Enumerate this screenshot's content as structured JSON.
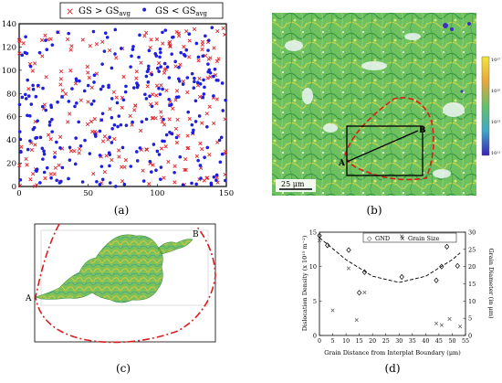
{
  "panel_a": {
    "caption": "(a)",
    "legend": [
      {
        "marker": "×",
        "label": "GS > GS",
        "sub": "avg",
        "color": "#e0242a"
      },
      {
        "marker": "•",
        "label": "GS < GS",
        "sub": "avg",
        "color": "#1f1fe0"
      }
    ],
    "chart_data": {
      "type": "scatter",
      "xlim": [
        0,
        150
      ],
      "ylim": [
        0,
        140
      ],
      "xticks": [
        "0",
        "50",
        "100",
        "150"
      ],
      "yticks": [
        "0",
        "20",
        "40",
        "60",
        "80",
        "100",
        "120",
        "140"
      ],
      "series": [
        {
          "name": "GS > GSavg",
          "color": "#e0242a",
          "marker": "x",
          "points": []
        },
        {
          "name": "GS < GSavg",
          "color": "#1f1fe0",
          "marker": "dot",
          "points": []
        }
      ],
      "grid": false
    }
  },
  "panel_b": {
    "caption": "(b)",
    "scale_bar_label": "25 μm",
    "point_a": "A",
    "point_b": "B",
    "colorbar_ticks": [
      "10¹⁷",
      "10¹⁵",
      "10¹³",
      "10¹¹"
    ]
  },
  "panel_c": {
    "caption": "(c)",
    "point_a": "A",
    "point_b": "B"
  },
  "panel_d": {
    "caption": "(d)",
    "legend": [
      {
        "marker": "◇",
        "label": "GND"
      },
      {
        "marker": "×",
        "label": "Grain Size"
      }
    ],
    "chart_data": {
      "type": "scatter",
      "xlabel": "Grain Distance from Interplat Boundary (μm)",
      "ylabel": "Dislocation Density  (x 10¹⁵ m⁻²)",
      "y2label": "Grain Diameter (in μm)",
      "xlim": [
        0,
        55
      ],
      "ylim": [
        0,
        15
      ],
      "y2lim": [
        0,
        30
      ],
      "xticks": [
        "0",
        "5",
        "10",
        "15",
        "20",
        "25",
        "30",
        "35",
        "40",
        "45",
        "50",
        "55"
      ],
      "yticks": [
        "0",
        "5",
        "10",
        "15"
      ],
      "y2ticks": [
        "0",
        "5",
        "10",
        "15",
        "20",
        "25",
        "30"
      ],
      "series": [
        {
          "name": "GND",
          "axis": "left",
          "marker": "diamond",
          "points": [
            [
              0,
              14.5
            ],
            [
              3,
              13.1
            ],
            [
              11,
              12.4
            ],
            [
              15,
              6.2
            ],
            [
              17,
              9.2
            ],
            [
              31,
              8.5
            ],
            [
              44,
              8.0
            ],
            [
              46,
              10.0
            ],
            [
              48,
              12.9
            ],
            [
              52,
              10.1
            ]
          ]
        },
        {
          "name": "Grain Size",
          "axis": "right",
          "marker": "x",
          "points": [
            [
              0,
              27.6
            ],
            [
              5,
              7.3
            ],
            [
              11,
              19.5
            ],
            [
              14,
              4.5
            ],
            [
              17,
              12.5
            ],
            [
              31,
              28.8
            ],
            [
              44,
              3.5
            ],
            [
              46,
              3.0
            ],
            [
              49,
              4.8
            ],
            [
              53,
              2.6
            ]
          ]
        },
        {
          "name": "GND trend",
          "axis": "left",
          "style": "dashed",
          "type": "quadratic-fit",
          "points": [
            [
              0,
              14.2
            ],
            [
              10,
              11.0
            ],
            [
              20,
              8.6
            ],
            [
              30,
              7.7
            ],
            [
              40,
              8.6
            ],
            [
              50,
              11.0
            ],
            [
              53,
              12.0
            ]
          ]
        }
      ],
      "legend_position": "top-center"
    }
  }
}
